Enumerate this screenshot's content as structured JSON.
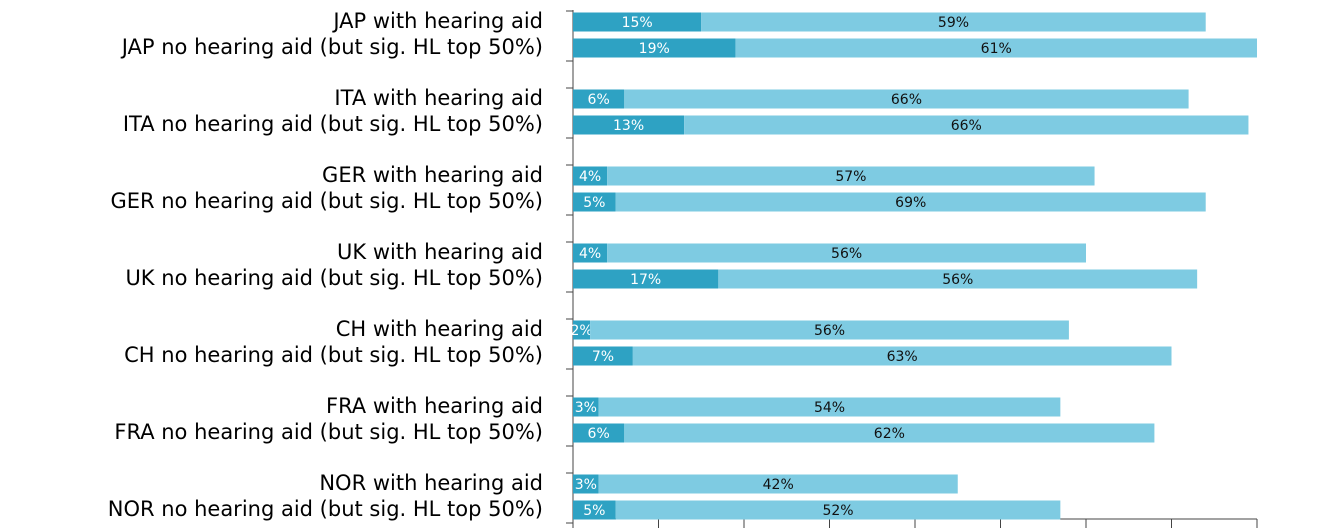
{
  "chart_data": {
    "type": "stacked-bar-horizontal",
    "categories": [
      "JAP with hearing aid",
      "JAP no hearing aid (but sig. HL top 50%)",
      "ITA with hearing aid",
      "ITA no hearing aid (but sig. HL top 50%)",
      "GER with hearing aid",
      "GER no hearing aid (but sig. HL top 50%)",
      "UK with hearing aid",
      "UK no hearing aid (but sig. HL top 50%)",
      "CH with hearing aid",
      "CH no hearing aid (but sig. HL top 50%)",
      "FRA with hearing aid",
      "FRA no hearing aid (but sig. HL top 50%)",
      "NOR with hearing aid",
      "NOR no hearing aid (but sig. HL top 50%)"
    ],
    "series": [
      {
        "color": "#2ea2c3",
        "label_color": "#ffffff",
        "values": [
          15,
          19,
          6,
          13,
          4,
          5,
          4,
          17,
          2,
          7,
          3,
          6,
          3,
          5
        ],
        "value_labels": [
          "15%",
          "19%",
          "6%",
          "13%",
          "4%",
          "5%",
          "4%",
          "17%",
          "2%",
          "7%",
          "3%",
          "6%",
          "3%",
          "5%"
        ]
      },
      {
        "color": "#7ecbe2",
        "label_color": "#111111",
        "values": [
          59,
          61,
          66,
          66,
          57,
          69,
          56,
          56,
          56,
          63,
          54,
          62,
          42,
          52
        ],
        "value_labels": [
          "59%",
          "61%",
          "66%",
          "66%",
          "57%",
          "69%",
          "56%",
          "56%",
          "56%",
          "63%",
          "54%",
          "62%",
          "42%",
          "52%"
        ]
      }
    ],
    "xlim": [
      0,
      80
    ],
    "xticks": [
      0,
      10,
      20,
      30,
      40,
      50,
      60,
      70,
      80
    ]
  }
}
